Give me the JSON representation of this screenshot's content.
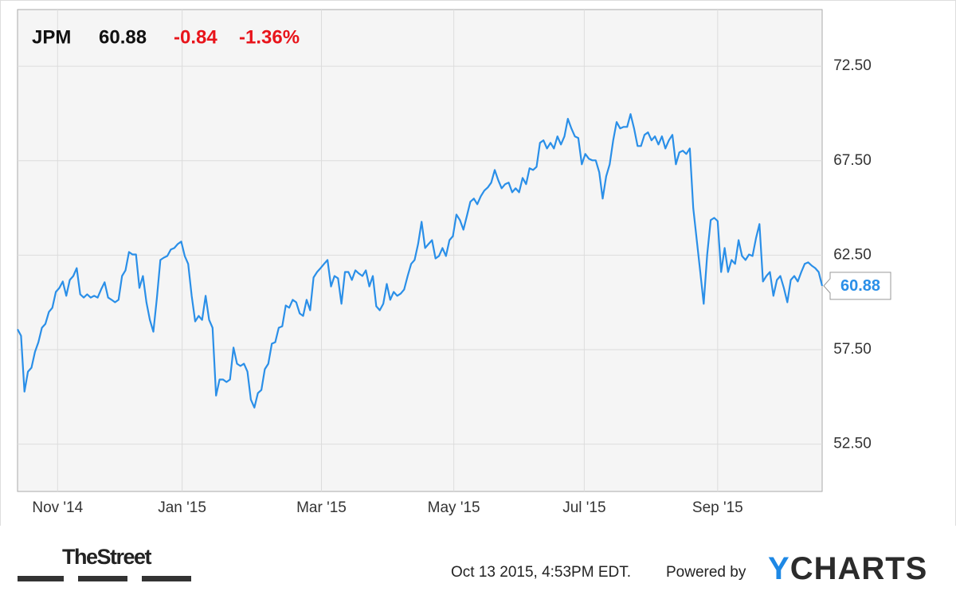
{
  "header": {
    "ticker": "JPM",
    "price": "60.88",
    "change": "-0.84",
    "change_percent": "-1.36%"
  },
  "chart_data": {
    "type": "line",
    "color": "#2a8fe8",
    "grid": true,
    "values": [
      58.58,
      58.24,
      55.28,
      56.34,
      56.55,
      57.39,
      57.9,
      58.66,
      58.87,
      59.5,
      59.72,
      60.56,
      60.77,
      61.11,
      60.35,
      61.19,
      61.4,
      61.82,
      60.43,
      60.26,
      60.43,
      60.26,
      60.35,
      60.26,
      60.69,
      61.07,
      60.26,
      60.14,
      60.01,
      60.14,
      61.4,
      61.7,
      62.67,
      62.54,
      62.54,
      60.77,
      61.4,
      60.01,
      59.08,
      58.45,
      60.22,
      62.25,
      62.37,
      62.46,
      62.8,
      62.88,
      63.09,
      63.22,
      62.46,
      62.04,
      60.35,
      59.0,
      59.29,
      59.08,
      60.35,
      59.08,
      58.66,
      55.07,
      55.92,
      55.92,
      55.79,
      55.92,
      57.61,
      56.76,
      56.64,
      56.76,
      56.34,
      54.86,
      54.44,
      55.2,
      55.37,
      56.47,
      56.76,
      57.82,
      57.9,
      58.66,
      58.74,
      59.84,
      59.72,
      60.14,
      60.01,
      59.42,
      59.29,
      60.14,
      59.59,
      61.32,
      61.61,
      61.82,
      62.04,
      62.25,
      60.85,
      61.4,
      61.28,
      59.93,
      61.61,
      61.61,
      61.19,
      61.7,
      61.53,
      61.4,
      61.7,
      60.85,
      61.4,
      59.8,
      59.59,
      59.93,
      60.98,
      60.14,
      60.56,
      60.35,
      60.47,
      60.69,
      61.4,
      62.04,
      62.25,
      63.09,
      64.27,
      62.88,
      63.09,
      63.3,
      62.33,
      62.46,
      62.88,
      62.46,
      63.3,
      63.51,
      64.65,
      64.36,
      63.85,
      64.57,
      65.33,
      65.5,
      65.2,
      65.62,
      65.92,
      66.09,
      66.34,
      67.01,
      66.47,
      66.04,
      66.26,
      66.34,
      65.83,
      66.04,
      65.83,
      66.59,
      66.26,
      67.1,
      67.01,
      67.18,
      68.45,
      68.58,
      68.15,
      68.45,
      68.15,
      68.79,
      68.36,
      68.79,
      69.72,
      69.21,
      68.79,
      68.7,
      67.31,
      67.86,
      67.61,
      67.52,
      67.52,
      66.89,
      65.5,
      66.68,
      67.31,
      68.58,
      69.55,
      69.21,
      69.29,
      69.29,
      69.97,
      69.21,
      68.28,
      68.28,
      68.87,
      69.0,
      68.58,
      68.79,
      68.36,
      68.79,
      68.15,
      68.58,
      68.87,
      67.31,
      67.94,
      68.03,
      67.86,
      68.15,
      64.99,
      63.3,
      61.61,
      59.93,
      62.54,
      64.36,
      64.48,
      64.31,
      61.61,
      62.88,
      61.61,
      62.25,
      62.04,
      63.3,
      62.46,
      62.25,
      62.54,
      62.46,
      63.39,
      64.15,
      61.11,
      61.4,
      61.61,
      60.35,
      61.19,
      61.4,
      60.77,
      60.01,
      61.19,
      61.4,
      61.11,
      61.61,
      62.04,
      62.12,
      61.95,
      61.82,
      61.61,
      60.88
    ],
    "xlim": [
      0,
      231
    ],
    "xticks": [
      {
        "value": 11.5,
        "label": "Nov '14"
      },
      {
        "value": 47.25,
        "label": "Jan '15"
      },
      {
        "value": 87.25,
        "label": "Mar '15"
      },
      {
        "value": 125.25,
        "label": "May '15"
      },
      {
        "value": 162.7,
        "label": "Jul '15"
      },
      {
        "value": 201,
        "label": "Sep '15"
      }
    ],
    "ylim": [
      50,
      75.5
    ],
    "yticks": [
      {
        "value": 52.5,
        "label": "52.50"
      },
      {
        "value": 57.5,
        "label": "57.50"
      },
      {
        "value": 62.5,
        "label": "62.50"
      },
      {
        "value": 67.5,
        "label": "67.50"
      },
      {
        "value": 72.5,
        "label": "72.50"
      }
    ]
  },
  "footer": {
    "source": "TheStreet",
    "timestamp": "Oct 13 2015, 4:53PM EDT.",
    "powered_by": "Powered by",
    "brand": "YCHARTS"
  }
}
